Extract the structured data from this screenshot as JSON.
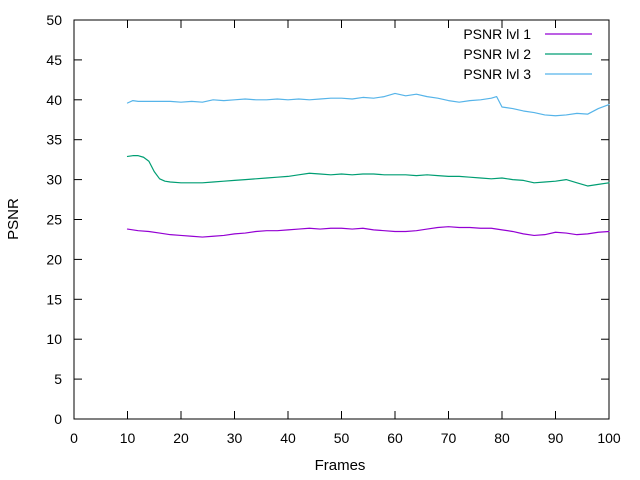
{
  "chart_data": {
    "type": "line",
    "title": "",
    "xlabel": "Frames",
    "ylabel": "PSNR",
    "xlim": [
      0,
      100
    ],
    "ylim": [
      0,
      50
    ],
    "xticks": [
      0,
      10,
      20,
      30,
      40,
      50,
      60,
      70,
      80,
      90,
      100
    ],
    "yticks": [
      0,
      5,
      10,
      15,
      20,
      25,
      30,
      35,
      40,
      45,
      50
    ],
    "grid": false,
    "legend_position": "top-right",
    "series": [
      {
        "name": "PSNR lvl 1",
        "color": "#9400d3",
        "x": [
          10,
          12,
          14,
          16,
          18,
          20,
          22,
          24,
          26,
          28,
          30,
          32,
          34,
          36,
          38,
          40,
          42,
          44,
          46,
          48,
          50,
          52,
          54,
          56,
          58,
          60,
          62,
          64,
          66,
          68,
          70,
          72,
          74,
          76,
          78,
          80,
          82,
          84,
          86,
          88,
          90,
          92,
          94,
          96,
          98,
          100
        ],
        "y": [
          23.8,
          23.6,
          23.5,
          23.3,
          23.1,
          23.0,
          22.9,
          22.8,
          22.9,
          23.0,
          23.2,
          23.3,
          23.5,
          23.6,
          23.6,
          23.7,
          23.8,
          23.9,
          23.8,
          23.9,
          23.9,
          23.8,
          23.9,
          23.7,
          23.6,
          23.5,
          23.5,
          23.6,
          23.8,
          24.0,
          24.1,
          24.0,
          24.0,
          23.9,
          23.9,
          23.7,
          23.5,
          23.2,
          23.0,
          23.1,
          23.4,
          23.3,
          23.1,
          23.2,
          23.4,
          23.5
        ]
      },
      {
        "name": "PSNR lvl 2",
        "color": "#009e73",
        "x": [
          10,
          11,
          12,
          13,
          14,
          15,
          16,
          17,
          18,
          20,
          22,
          24,
          26,
          28,
          30,
          32,
          34,
          36,
          38,
          40,
          42,
          44,
          46,
          48,
          50,
          52,
          54,
          56,
          58,
          60,
          62,
          64,
          66,
          68,
          70,
          72,
          74,
          76,
          78,
          80,
          82,
          84,
          86,
          88,
          90,
          92,
          94,
          96,
          98,
          100
        ],
        "y": [
          32.9,
          33.0,
          33.0,
          32.8,
          32.3,
          31.0,
          30.1,
          29.8,
          29.7,
          29.6,
          29.6,
          29.6,
          29.7,
          29.8,
          29.9,
          30.0,
          30.1,
          30.2,
          30.3,
          30.4,
          30.6,
          30.8,
          30.7,
          30.6,
          30.7,
          30.6,
          30.7,
          30.7,
          30.6,
          30.6,
          30.6,
          30.5,
          30.6,
          30.5,
          30.4,
          30.4,
          30.3,
          30.2,
          30.1,
          30.2,
          30.0,
          29.9,
          29.6,
          29.7,
          29.8,
          30.0,
          29.6,
          29.2,
          29.4,
          29.6
        ]
      },
      {
        "name": "PSNR lvl 3",
        "color": "#56b4e9",
        "x": [
          10,
          11,
          12,
          14,
          16,
          18,
          20,
          22,
          24,
          26,
          28,
          30,
          32,
          34,
          36,
          38,
          40,
          42,
          44,
          46,
          48,
          50,
          52,
          54,
          56,
          58,
          60,
          62,
          64,
          66,
          68,
          70,
          72,
          74,
          76,
          78,
          79,
          80,
          82,
          84,
          86,
          88,
          90,
          92,
          94,
          96,
          98,
          100
        ],
        "y": [
          39.6,
          39.9,
          39.8,
          39.8,
          39.8,
          39.8,
          39.7,
          39.8,
          39.7,
          40.0,
          39.9,
          40.0,
          40.1,
          40.0,
          40.0,
          40.1,
          40.0,
          40.1,
          40.0,
          40.1,
          40.2,
          40.2,
          40.1,
          40.3,
          40.2,
          40.4,
          40.8,
          40.5,
          40.7,
          40.4,
          40.2,
          39.9,
          39.7,
          39.9,
          40.0,
          40.2,
          40.4,
          39.1,
          38.9,
          38.6,
          38.4,
          38.1,
          38.0,
          38.1,
          38.3,
          38.2,
          38.9,
          39.4
        ]
      }
    ]
  }
}
